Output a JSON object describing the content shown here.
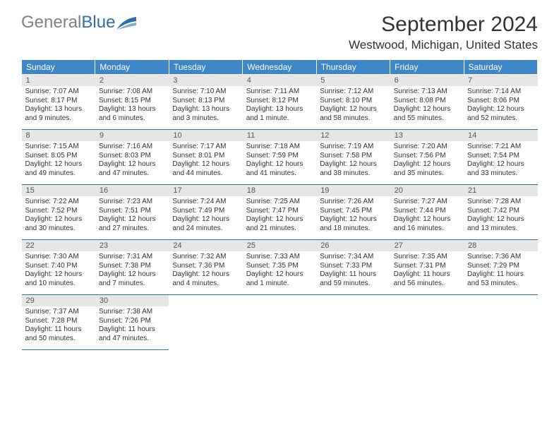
{
  "logo": {
    "grey": "General",
    "blue": "Blue"
  },
  "title": "September 2024",
  "location": "Westwood, Michigan, United States",
  "colors": {
    "header_bg": "#3d87c9",
    "header_text": "#ffffff",
    "daynum_bg": "#e6e6e6",
    "border": "#2f6fa8"
  },
  "daynames": [
    "Sunday",
    "Monday",
    "Tuesday",
    "Wednesday",
    "Thursday",
    "Friday",
    "Saturday"
  ],
  "weeks": [
    [
      {
        "n": "1",
        "sr": "Sunrise: 7:07 AM",
        "ss": "Sunset: 8:17 PM",
        "dl": "Daylight: 13 hours and 9 minutes."
      },
      {
        "n": "2",
        "sr": "Sunrise: 7:08 AM",
        "ss": "Sunset: 8:15 PM",
        "dl": "Daylight: 13 hours and 6 minutes."
      },
      {
        "n": "3",
        "sr": "Sunrise: 7:10 AM",
        "ss": "Sunset: 8:13 PM",
        "dl": "Daylight: 13 hours and 3 minutes."
      },
      {
        "n": "4",
        "sr": "Sunrise: 7:11 AM",
        "ss": "Sunset: 8:12 PM",
        "dl": "Daylight: 13 hours and 1 minute."
      },
      {
        "n": "5",
        "sr": "Sunrise: 7:12 AM",
        "ss": "Sunset: 8:10 PM",
        "dl": "Daylight: 12 hours and 58 minutes."
      },
      {
        "n": "6",
        "sr": "Sunrise: 7:13 AM",
        "ss": "Sunset: 8:08 PM",
        "dl": "Daylight: 12 hours and 55 minutes."
      },
      {
        "n": "7",
        "sr": "Sunrise: 7:14 AM",
        "ss": "Sunset: 8:06 PM",
        "dl": "Daylight: 12 hours and 52 minutes."
      }
    ],
    [
      {
        "n": "8",
        "sr": "Sunrise: 7:15 AM",
        "ss": "Sunset: 8:05 PM",
        "dl": "Daylight: 12 hours and 49 minutes."
      },
      {
        "n": "9",
        "sr": "Sunrise: 7:16 AM",
        "ss": "Sunset: 8:03 PM",
        "dl": "Daylight: 12 hours and 47 minutes."
      },
      {
        "n": "10",
        "sr": "Sunrise: 7:17 AM",
        "ss": "Sunset: 8:01 PM",
        "dl": "Daylight: 12 hours and 44 minutes."
      },
      {
        "n": "11",
        "sr": "Sunrise: 7:18 AM",
        "ss": "Sunset: 7:59 PM",
        "dl": "Daylight: 12 hours and 41 minutes."
      },
      {
        "n": "12",
        "sr": "Sunrise: 7:19 AM",
        "ss": "Sunset: 7:58 PM",
        "dl": "Daylight: 12 hours and 38 minutes."
      },
      {
        "n": "13",
        "sr": "Sunrise: 7:20 AM",
        "ss": "Sunset: 7:56 PM",
        "dl": "Daylight: 12 hours and 35 minutes."
      },
      {
        "n": "14",
        "sr": "Sunrise: 7:21 AM",
        "ss": "Sunset: 7:54 PM",
        "dl": "Daylight: 12 hours and 33 minutes."
      }
    ],
    [
      {
        "n": "15",
        "sr": "Sunrise: 7:22 AM",
        "ss": "Sunset: 7:52 PM",
        "dl": "Daylight: 12 hours and 30 minutes."
      },
      {
        "n": "16",
        "sr": "Sunrise: 7:23 AM",
        "ss": "Sunset: 7:51 PM",
        "dl": "Daylight: 12 hours and 27 minutes."
      },
      {
        "n": "17",
        "sr": "Sunrise: 7:24 AM",
        "ss": "Sunset: 7:49 PM",
        "dl": "Daylight: 12 hours and 24 minutes."
      },
      {
        "n": "18",
        "sr": "Sunrise: 7:25 AM",
        "ss": "Sunset: 7:47 PM",
        "dl": "Daylight: 12 hours and 21 minutes."
      },
      {
        "n": "19",
        "sr": "Sunrise: 7:26 AM",
        "ss": "Sunset: 7:45 PM",
        "dl": "Daylight: 12 hours and 18 minutes."
      },
      {
        "n": "20",
        "sr": "Sunrise: 7:27 AM",
        "ss": "Sunset: 7:44 PM",
        "dl": "Daylight: 12 hours and 16 minutes."
      },
      {
        "n": "21",
        "sr": "Sunrise: 7:28 AM",
        "ss": "Sunset: 7:42 PM",
        "dl": "Daylight: 12 hours and 13 minutes."
      }
    ],
    [
      {
        "n": "22",
        "sr": "Sunrise: 7:30 AM",
        "ss": "Sunset: 7:40 PM",
        "dl": "Daylight: 12 hours and 10 minutes."
      },
      {
        "n": "23",
        "sr": "Sunrise: 7:31 AM",
        "ss": "Sunset: 7:38 PM",
        "dl": "Daylight: 12 hours and 7 minutes."
      },
      {
        "n": "24",
        "sr": "Sunrise: 7:32 AM",
        "ss": "Sunset: 7:36 PM",
        "dl": "Daylight: 12 hours and 4 minutes."
      },
      {
        "n": "25",
        "sr": "Sunrise: 7:33 AM",
        "ss": "Sunset: 7:35 PM",
        "dl": "Daylight: 12 hours and 1 minute."
      },
      {
        "n": "26",
        "sr": "Sunrise: 7:34 AM",
        "ss": "Sunset: 7:33 PM",
        "dl": "Daylight: 11 hours and 59 minutes."
      },
      {
        "n": "27",
        "sr": "Sunrise: 7:35 AM",
        "ss": "Sunset: 7:31 PM",
        "dl": "Daylight: 11 hours and 56 minutes."
      },
      {
        "n": "28",
        "sr": "Sunrise: 7:36 AM",
        "ss": "Sunset: 7:29 PM",
        "dl": "Daylight: 11 hours and 53 minutes."
      }
    ],
    [
      {
        "n": "29",
        "sr": "Sunrise: 7:37 AM",
        "ss": "Sunset: 7:28 PM",
        "dl": "Daylight: 11 hours and 50 minutes."
      },
      {
        "n": "30",
        "sr": "Sunrise: 7:38 AM",
        "ss": "Sunset: 7:26 PM",
        "dl": "Daylight: 11 hours and 47 minutes."
      },
      null,
      null,
      null,
      null,
      null
    ]
  ]
}
